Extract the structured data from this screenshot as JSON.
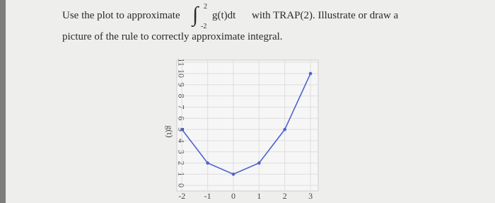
{
  "question": {
    "prefix": "Use the plot to approximate",
    "integral_sign": "∫",
    "integral_upper": "2",
    "integral_lower": "-2",
    "integrand": "g(t)dt",
    "suffix": "with TRAP(2). Illustrate or draw a",
    "line2": "picture of the rule to correctly approximate integral."
  },
  "chart_data": {
    "type": "line",
    "y_label": "g(t)",
    "x": [
      -2,
      -1,
      0,
      1,
      2,
      3
    ],
    "series": [
      {
        "color": "#4f63c9",
        "values": [
          5,
          2,
          1,
          2,
          5,
          10
        ]
      }
    ],
    "xlim": [
      -2.2,
      3.3
    ],
    "ylim": [
      -0.5,
      11.2
    ],
    "xticks": [
      -2,
      -1,
      0,
      1,
      2,
      3
    ],
    "yticks": [
      0,
      1,
      2,
      3,
      4,
      5,
      6,
      7,
      8,
      9,
      10,
      11
    ],
    "grid": true
  }
}
